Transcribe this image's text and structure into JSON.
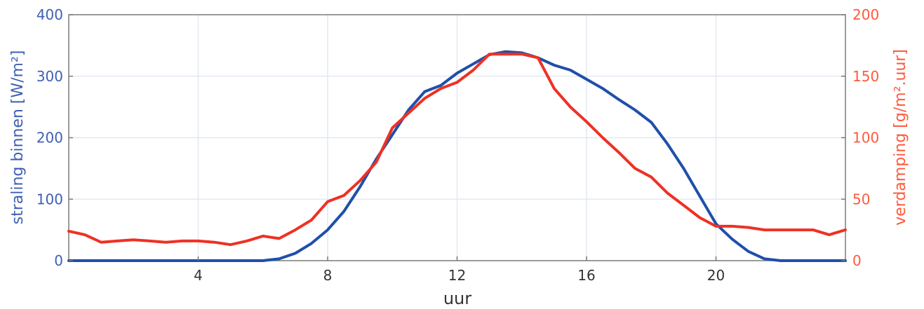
{
  "chart_data": {
    "type": "line",
    "xlabel": "uur",
    "ylabel_left": "straling binnen [W/m²]",
    "ylabel_right": "verdamping [g/m².uur]",
    "xlim": [
      0,
      24
    ],
    "ylim_left": [
      0,
      400
    ],
    "ylim_right": [
      0,
      200
    ],
    "x_ticks": [
      4,
      8,
      12,
      16,
      20
    ],
    "y_left_ticks": [
      0,
      100,
      200,
      300,
      400
    ],
    "y_right_ticks": [
      0,
      50,
      100,
      150,
      200
    ],
    "grid": true,
    "colors": {
      "left_axis": "#3f5fb6",
      "right_axis": "#ff5a3c",
      "grid": "#e4e8f2"
    },
    "series": [
      {
        "axis": "left",
        "color": "#1f4faa",
        "x": [
          0,
          2,
          4,
          6,
          6.5,
          7,
          7.5,
          8,
          8.5,
          9,
          9.5,
          10,
          10.5,
          11,
          11.5,
          12,
          12.5,
          13,
          13.5,
          14,
          14.5,
          15,
          15.5,
          16,
          16.5,
          17,
          17.5,
          18,
          18.5,
          19,
          19.5,
          20,
          20.5,
          21,
          21.5,
          22,
          23,
          24
        ],
        "values": [
          0,
          0,
          0,
          0,
          3,
          12,
          28,
          50,
          80,
          120,
          165,
          205,
          245,
          275,
          285,
          305,
          320,
          335,
          340,
          338,
          330,
          318,
          310,
          295,
          280,
          262,
          245,
          225,
          190,
          150,
          105,
          60,
          35,
          15,
          3,
          0,
          0,
          0
        ]
      },
      {
        "axis": "right",
        "color": "#ee3124",
        "x": [
          0,
          0.5,
          1,
          1.5,
          2,
          2.5,
          3,
          3.5,
          4,
          4.5,
          5,
          5.5,
          6,
          6.5,
          7,
          7.5,
          8,
          8.5,
          9,
          9.5,
          10,
          10.5,
          11,
          11.5,
          12,
          12.5,
          13,
          13.5,
          14,
          14.5,
          15,
          15.5,
          16,
          16.5,
          17,
          17.5,
          18,
          18.5,
          19,
          19.5,
          20,
          20.5,
          21,
          21.5,
          22,
          22.5,
          23,
          23.5,
          24
        ],
        "values": [
          24,
          21,
          15,
          16,
          17,
          16,
          15,
          16,
          16,
          15,
          13,
          16,
          20,
          18,
          25,
          33,
          48,
          53,
          65,
          80,
          108,
          120,
          132,
          140,
          145,
          155,
          168,
          168,
          168,
          165,
          140,
          125,
          113,
          100,
          88,
          75,
          68,
          55,
          45,
          35,
          28,
          28,
          27,
          25,
          25,
          25,
          25,
          21,
          25
        ]
      }
    ]
  }
}
